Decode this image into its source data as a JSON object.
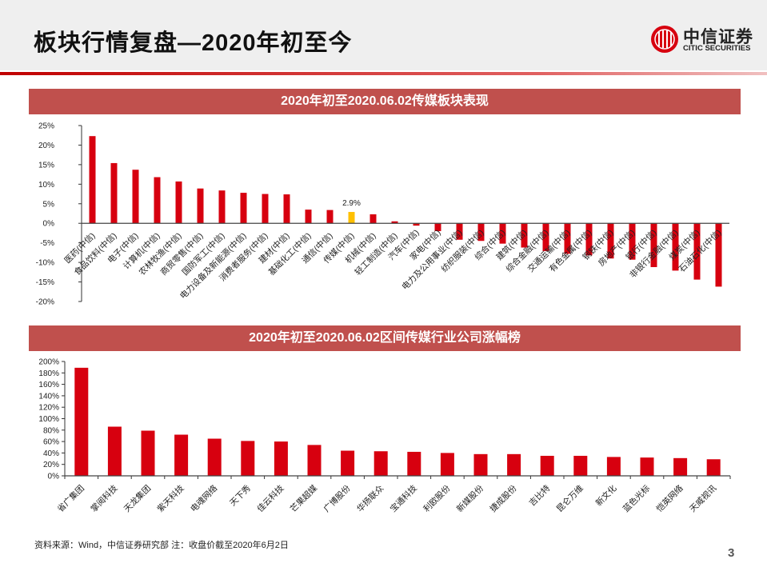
{
  "header": {
    "title": "板块行情复盘—2020年初至今",
    "logo_cn": "中信证券",
    "logo_en": "CITIC SECURITIES"
  },
  "colors": {
    "bar": "#d7000f",
    "highlight": "#ffc000",
    "section": "#c0504d"
  },
  "chart_data": [
    {
      "type": "bar",
      "title": "2020年初至2020.06.02传媒板块表现",
      "ylim": [
        -20,
        25
      ],
      "yticks": [
        25,
        20,
        15,
        10,
        5,
        0,
        -5,
        -10,
        -15,
        -20
      ],
      "tick_format": "%",
      "highlight": "传媒(中信)",
      "annotation": "2.9%",
      "categories": [
        "医药(中信)",
        "食品饮料(中信)",
        "电子(中信)",
        "计算机(中信)",
        "农林牧渔(中信)",
        "商贸零售(中信)",
        "国防军工(中信)",
        "电力设备及新能源(中信)",
        "消费者服务(中信)",
        "建材(中信)",
        "基础化工(中信)",
        "通信(中信)",
        "传媒(中信)",
        "机械(中信)",
        "轻工制造(中信)",
        "汽车(中信)",
        "家电(中信)",
        "电力及公用事业(中信)",
        "纺织服装(中信)",
        "综合(中信)",
        "建筑(中信)",
        "综合金融(中信)",
        "交通运输(中信)",
        "有色金属(中信)",
        "钢铁(中信)",
        "房地产(中信)",
        "银行(中信)",
        "非银行金融(中信)",
        "煤炭(中信)",
        "石油石化(中信)"
      ],
      "values": [
        22.3,
        15.4,
        13.7,
        11.8,
        10.7,
        8.9,
        8.4,
        7.8,
        7.5,
        7.4,
        3.5,
        3.4,
        2.9,
        2.3,
        0.5,
        -0.6,
        -2.0,
        -4.2,
        -4.5,
        -5.2,
        -6.2,
        -7.1,
        -7.8,
        -8.2,
        -9.0,
        -9.3,
        -11.2,
        -12.1,
        -14.4,
        -16.2
      ]
    },
    {
      "type": "bar",
      "title": "2020年初至2020.06.02区间传媒行业公司涨幅榜",
      "ylim": [
        0,
        200
      ],
      "yticks": [
        200,
        180,
        160,
        140,
        120,
        100,
        80,
        60,
        40,
        20,
        0
      ],
      "tick_format": "%",
      "categories": [
        "省广集团",
        "掌阅科技",
        "天龙集团",
        "紫天科技",
        "电魂网络",
        "天下秀",
        "佳云科技",
        "芒果超媒",
        "广博股份",
        "华扬联众",
        "宝通科技",
        "利欧股份",
        "新媒股份",
        "捷成股份",
        "吉比特",
        "昆仑万维",
        "新文化",
        "蓝色光标",
        "恺英网络",
        "天威视讯"
      ],
      "values": [
        189,
        86,
        79,
        72,
        65,
        61,
        60,
        54,
        44,
        43,
        42,
        40,
        38,
        38,
        35,
        35,
        33,
        32,
        31,
        29
      ]
    }
  ],
  "footer": {
    "source": "资料来源：Wind，中信证券研究部 注：收盘价截至2020年6月2日",
    "page": "3"
  }
}
